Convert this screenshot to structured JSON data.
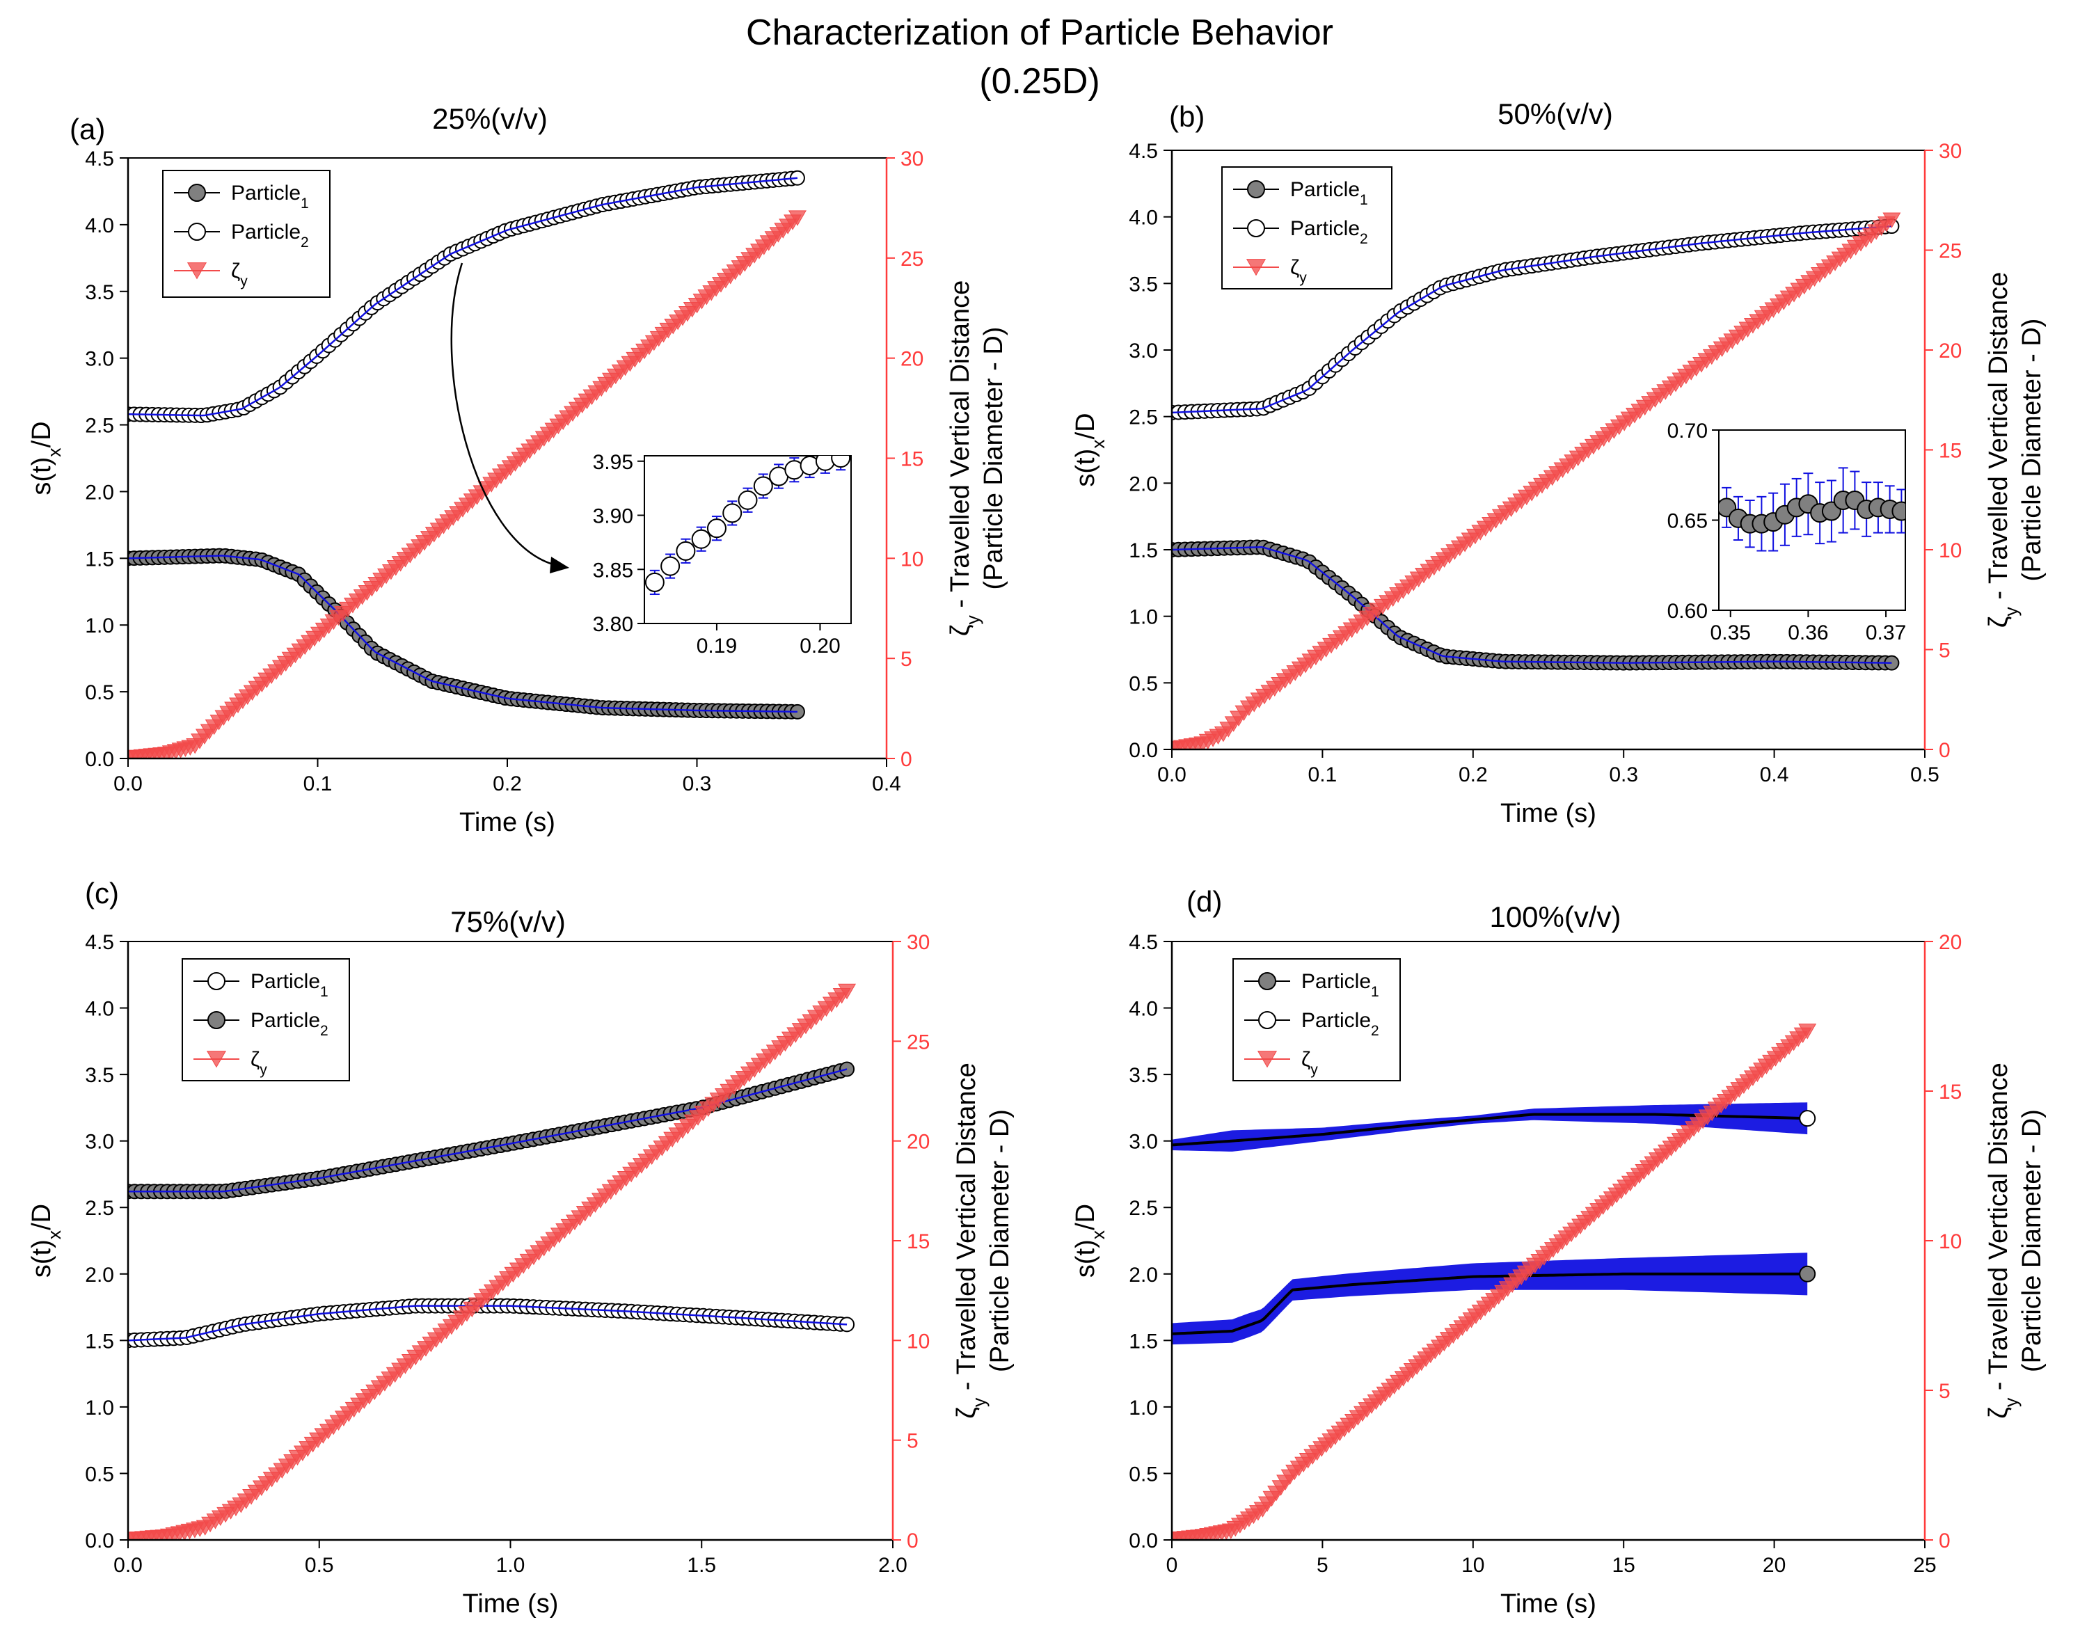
{
  "figure": {
    "title_line1": "Characterization of Particle Behavior",
    "title_line2": "(0.25D)"
  },
  "colors": {
    "axis_right": "#ff3b3b",
    "zeta_marker": "#f24a4a",
    "error_bar": "#1010e0",
    "marker_filled": "#808080",
    "marker_edge": "#000000"
  },
  "chart_data": [
    {
      "type": "line",
      "letter": "(a)",
      "title": "25%(v/v)",
      "xlabel": "Time (s)",
      "ylabel": "s(t)x/D",
      "ylabel2": "ζy - Travelled Vertical Distance (Particle Diameter - D)",
      "xlim": [
        0,
        0.4
      ],
      "xticks": [
        0.0,
        0.1,
        0.2,
        0.3,
        0.4
      ],
      "xdec": 1,
      "ylim": [
        0,
        4.5
      ],
      "yticks": [
        0.0,
        0.5,
        1.0,
        1.5,
        2.0,
        2.5,
        3.0,
        3.5,
        4.0,
        4.5
      ],
      "ydec": 1,
      "y2lim": [
        0,
        30
      ],
      "y2ticks": [
        0,
        5,
        10,
        15,
        20,
        25,
        30
      ],
      "legend": [
        {
          "key": "p1",
          "label": "Particle",
          "sub": "1",
          "style": "filled"
        },
        {
          "key": "p2",
          "label": "Particle",
          "sub": "2",
          "style": "open"
        },
        {
          "key": "z",
          "label": "ζ",
          "sub": "y",
          "style": "tri"
        }
      ],
      "series": [
        {
          "name": "Particle1",
          "style": "filled",
          "t_end": 0.353,
          "points": [
            [
              0,
              1.5
            ],
            [
              0.05,
              1.52
            ],
            [
              0.07,
              1.49
            ],
            [
              0.09,
              1.38
            ],
            [
              0.11,
              1.1
            ],
            [
              0.13,
              0.8
            ],
            [
              0.16,
              0.58
            ],
            [
              0.2,
              0.45
            ],
            [
              0.25,
              0.38
            ],
            [
              0.3,
              0.36
            ],
            [
              0.353,
              0.35
            ]
          ]
        },
        {
          "name": "Particle2",
          "style": "open",
          "t_end": 0.353,
          "points": [
            [
              0,
              2.58
            ],
            [
              0.04,
              2.57
            ],
            [
              0.06,
              2.62
            ],
            [
              0.08,
              2.78
            ],
            [
              0.1,
              3.02
            ],
            [
              0.13,
              3.4
            ],
            [
              0.17,
              3.78
            ],
            [
              0.2,
              3.96
            ],
            [
              0.25,
              4.15
            ],
            [
              0.3,
              4.28
            ],
            [
              0.353,
              4.35
            ]
          ]
        },
        {
          "name": "ζy",
          "style": "tri",
          "axis": "right",
          "t_end": 0.353,
          "points": [
            [
              0,
              0
            ],
            [
              0.02,
              0.2
            ],
            [
              0.035,
              0.6
            ],
            [
              0.05,
              2.0
            ],
            [
              0.353,
              27
            ]
          ]
        }
      ],
      "inset": {
        "xlim": [
          0.183,
          0.203
        ],
        "ylim": [
          3.8,
          3.955
        ],
        "xticks": [
          0.19,
          0.2
        ],
        "xdec": 2,
        "yticks": [
          3.8,
          3.85,
          3.9,
          3.95
        ],
        "ydec": 2,
        "marker_style": "open",
        "x": [
          0.184,
          0.1855,
          0.187,
          0.1885,
          0.19,
          0.1915,
          0.193,
          0.1945,
          0.196,
          0.1975,
          0.199,
          0.2005,
          0.202
        ],
        "y": [
          3.838,
          3.853,
          3.867,
          3.878,
          3.888,
          3.902,
          3.914,
          3.927,
          3.936,
          3.942,
          3.946,
          3.95,
          3.953
        ],
        "err": [
          0.011,
          0.011,
          0.011,
          0.011,
          0.011,
          0.011,
          0.011,
          0.011,
          0.011,
          0.011,
          0.011,
          0.011,
          0.011
        ],
        "arrow": true
      }
    },
    {
      "type": "line",
      "letter": "(b)",
      "title": "50%(v/v)",
      "xlabel": "Time (s)",
      "ylabel": "s(t)x/D",
      "ylabel2": "ζy - Travelled Vertical Distance (Particle Diameter - D)",
      "xlim": [
        0,
        0.5
      ],
      "xticks": [
        0.0,
        0.1,
        0.2,
        0.3,
        0.4,
        0.5
      ],
      "xdec": 1,
      "ylim": [
        0,
        4.5
      ],
      "yticks": [
        0.0,
        0.5,
        1.0,
        1.5,
        2.0,
        2.5,
        3.0,
        3.5,
        4.0,
        4.5
      ],
      "ydec": 1,
      "y2lim": [
        0,
        30
      ],
      "y2ticks": [
        0,
        5,
        10,
        15,
        20,
        25,
        30
      ],
      "legend": [
        {
          "key": "p1",
          "label": "Particle",
          "sub": "1",
          "style": "filled"
        },
        {
          "key": "p2",
          "label": "Particle",
          "sub": "2",
          "style": "open"
        },
        {
          "key": "z",
          "label": "ζ",
          "sub": "y",
          "style": "tri"
        }
      ],
      "series": [
        {
          "name": "Particle1",
          "style": "filled",
          "t_end": 0.478,
          "points": [
            [
              0,
              1.5
            ],
            [
              0.06,
              1.52
            ],
            [
              0.09,
              1.42
            ],
            [
              0.12,
              1.15
            ],
            [
              0.15,
              0.85
            ],
            [
              0.18,
              0.7
            ],
            [
              0.22,
              0.66
            ],
            [
              0.3,
              0.65
            ],
            [
              0.4,
              0.66
            ],
            [
              0.478,
              0.65
            ]
          ]
        },
        {
          "name": "Particle2",
          "style": "open",
          "t_end": 0.478,
          "points": [
            [
              0,
              2.53
            ],
            [
              0.06,
              2.56
            ],
            [
              0.09,
              2.7
            ],
            [
              0.12,
              3.0
            ],
            [
              0.15,
              3.28
            ],
            [
              0.18,
              3.48
            ],
            [
              0.22,
              3.6
            ],
            [
              0.28,
              3.7
            ],
            [
              0.35,
              3.8
            ],
            [
              0.42,
              3.88
            ],
            [
              0.478,
              3.93
            ]
          ]
        },
        {
          "name": "ζy",
          "style": "tri",
          "axis": "right",
          "t_end": 0.478,
          "points": [
            [
              0,
              0
            ],
            [
              0.02,
              0.25
            ],
            [
              0.035,
              0.8
            ],
            [
              0.05,
              2.0
            ],
            [
              0.478,
              26.5
            ]
          ]
        }
      ],
      "inset": {
        "xlim": [
          0.3485,
          0.3725
        ],
        "ylim": [
          0.6,
          0.7
        ],
        "xticks": [
          0.35,
          0.36,
          0.37
        ],
        "xdec": 2,
        "yticks": [
          0.6,
          0.65,
          0.7
        ],
        "ydec": 2,
        "marker_style": "filled",
        "x": [
          0.3495,
          0.351,
          0.3525,
          0.354,
          0.3555,
          0.357,
          0.3585,
          0.36,
          0.3615,
          0.363,
          0.3645,
          0.366,
          0.3675,
          0.369,
          0.3705,
          0.372
        ],
        "y": [
          0.657,
          0.651,
          0.648,
          0.648,
          0.649,
          0.653,
          0.657,
          0.659,
          0.654,
          0.655,
          0.661,
          0.661,
          0.656,
          0.657,
          0.656,
          0.655
        ],
        "err": [
          0.011,
          0.012,
          0.013,
          0.015,
          0.016,
          0.017,
          0.016,
          0.017,
          0.017,
          0.017,
          0.018,
          0.016,
          0.015,
          0.014,
          0.013,
          0.012
        ],
        "arrow": false
      }
    },
    {
      "type": "line",
      "letter": "(c)",
      "title": "75%(v/v)",
      "xlabel": "Time (s)",
      "ylabel": "s(t)x/D",
      "ylabel2": "ζy - Travelled Vertical Distance (Particle Diameter - D)",
      "xlim": [
        0,
        2.0
      ],
      "xticks": [
        0.0,
        0.5,
        1.0,
        1.5,
        2.0
      ],
      "xdec": 1,
      "ylim": [
        0,
        4.5
      ],
      "yticks": [
        0.0,
        0.5,
        1.0,
        1.5,
        2.0,
        2.5,
        3.0,
        3.5,
        4.0,
        4.5
      ],
      "ydec": 1,
      "y2lim": [
        0,
        30
      ],
      "y2ticks": [
        0,
        5,
        10,
        15,
        20,
        25,
        30
      ],
      "legend": [
        {
          "key": "p1",
          "label": "Particle",
          "sub": "1",
          "style": "open"
        },
        {
          "key": "p2",
          "label": "Particle",
          "sub": "2",
          "style": "filled"
        },
        {
          "key": "z",
          "label": "ζ",
          "sub": "y",
          "style": "tri"
        }
      ],
      "series": [
        {
          "name": "Particle1",
          "style": "open",
          "t_end": 1.88,
          "points": [
            [
              0,
              1.5
            ],
            [
              0.15,
              1.52
            ],
            [
              0.3,
              1.62
            ],
            [
              0.5,
              1.7
            ],
            [
              0.75,
              1.76
            ],
            [
              1.0,
              1.76
            ],
            [
              1.3,
              1.72
            ],
            [
              1.6,
              1.67
            ],
            [
              1.88,
              1.62
            ]
          ]
        },
        {
          "name": "Particle2",
          "style": "filled",
          "t_end": 1.88,
          "points": [
            [
              0,
              2.62
            ],
            [
              0.25,
              2.62
            ],
            [
              0.5,
              2.72
            ],
            [
              1.0,
              2.98
            ],
            [
              1.5,
              3.25
            ],
            [
              1.88,
              3.54
            ]
          ]
        },
        {
          "name": "ζy",
          "style": "tri",
          "axis": "right",
          "t_end": 1.88,
          "points": [
            [
              0,
              0
            ],
            [
              0.1,
              0.15
            ],
            [
              0.2,
              0.6
            ],
            [
              0.3,
              1.8
            ],
            [
              1.88,
              27.5
            ]
          ]
        }
      ],
      "inset": null
    },
    {
      "type": "line",
      "letter": "(d)",
      "title": "100%(v/v)",
      "xlabel": "Time (s)",
      "ylabel": "s(t)x/D",
      "ylabel2": "ζy - Travelled Vertical Distance (Particle Diameter - D)",
      "xlim": [
        0,
        25
      ],
      "xticks": [
        0,
        5,
        10,
        15,
        20,
        25
      ],
      "xdec": 0,
      "ylim": [
        0,
        4.5
      ],
      "yticks": [
        0.0,
        0.5,
        1.0,
        1.5,
        2.0,
        2.5,
        3.0,
        3.5,
        4.0,
        4.5
      ],
      "ydec": 1,
      "y2lim": [
        0,
        20
      ],
      "y2ticks": [
        0,
        5,
        10,
        15,
        20
      ],
      "legend": [
        {
          "key": "p1",
          "label": "Particle",
          "sub": "1",
          "style": "filled"
        },
        {
          "key": "p2",
          "label": "Particle",
          "sub": "2",
          "style": "open"
        },
        {
          "key": "z",
          "label": "ζ",
          "sub": "y",
          "style": "tri"
        }
      ],
      "series": [
        {
          "name": "Particle1",
          "style": "filled",
          "t_end": 21.1,
          "points": [
            [
              0,
              1.55
            ],
            [
              2,
              1.57
            ],
            [
              3,
              1.65
            ],
            [
              4,
              1.88
            ],
            [
              6,
              1.92
            ],
            [
              10,
              1.98
            ],
            [
              15,
              2.0
            ],
            [
              21.1,
              2.0
            ]
          ],
          "band": [
            [
              0,
              0.08
            ],
            [
              2.5,
              0.09
            ],
            [
              4,
              0.08
            ],
            [
              10,
              0.1
            ],
            [
              15,
              0.12
            ],
            [
              21.1,
              0.16
            ]
          ]
        },
        {
          "name": "Particle2",
          "style": "open",
          "t_end": 21.1,
          "points": [
            [
              0,
              2.97
            ],
            [
              2,
              3.0
            ],
            [
              5,
              3.05
            ],
            [
              8,
              3.12
            ],
            [
              12,
              3.2
            ],
            [
              16,
              3.2
            ],
            [
              21.1,
              3.17
            ]
          ],
          "band": [
            [
              0,
              0.04
            ],
            [
              2,
              0.08
            ],
            [
              5,
              0.05
            ],
            [
              10,
              0.03
            ],
            [
              16,
              0.07
            ],
            [
              21.1,
              0.12
            ]
          ]
        },
        {
          "name": "ζy",
          "style": "tri",
          "axis": "right",
          "t_end": 21.1,
          "points": [
            [
              0,
              0
            ],
            [
              1,
              0.1
            ],
            [
              2,
              0.3
            ],
            [
              3,
              1.0
            ],
            [
              4,
              2.2
            ],
            [
              21.1,
              17.0
            ]
          ]
        }
      ],
      "inset": null
    }
  ]
}
